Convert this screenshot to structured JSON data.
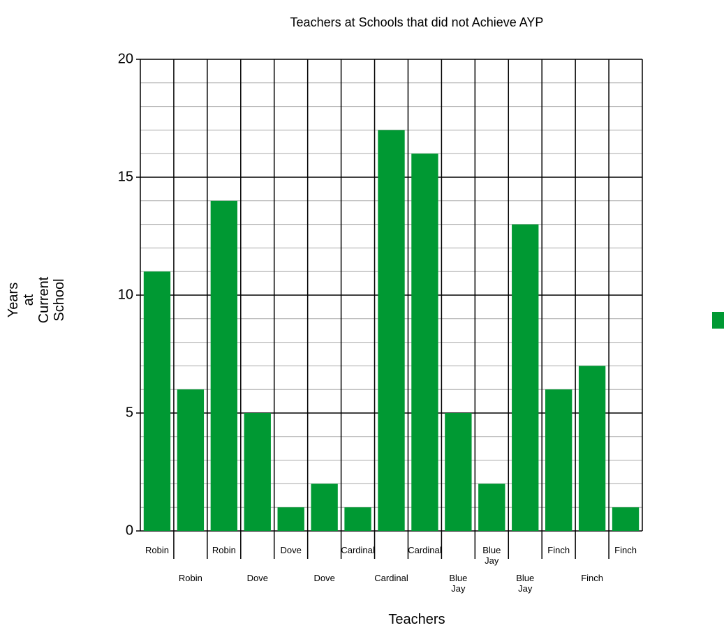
{
  "chart_data": {
    "type": "bar",
    "title": "Teachers at Schools that did not Achieve AYP",
    "x_label": "Teachers",
    "y_label": "Years at Current School",
    "categories": [
      "Robin",
      "Robin",
      "Robin",
      "Dove",
      "Dove",
      "Dove",
      "Cardinal",
      "Cardinal",
      "Cardinal",
      "Blue Jay",
      "Blue Jay",
      "Blue Jay",
      "Finch",
      "Finch",
      "Finch"
    ],
    "values": [
      11,
      6,
      14,
      5,
      1,
      2,
      1,
      17,
      16,
      5,
      2,
      13,
      6,
      7,
      1
    ],
    "color": "#009933",
    "ylim": [
      0,
      20
    ],
    "yticks": [
      0,
      5,
      10,
      15,
      20
    ],
    "minor_yticks": [
      1,
      2,
      3,
      4,
      6,
      7,
      8,
      9,
      11,
      12,
      13,
      14,
      16,
      17,
      18,
      19
    ],
    "grid": true
  }
}
